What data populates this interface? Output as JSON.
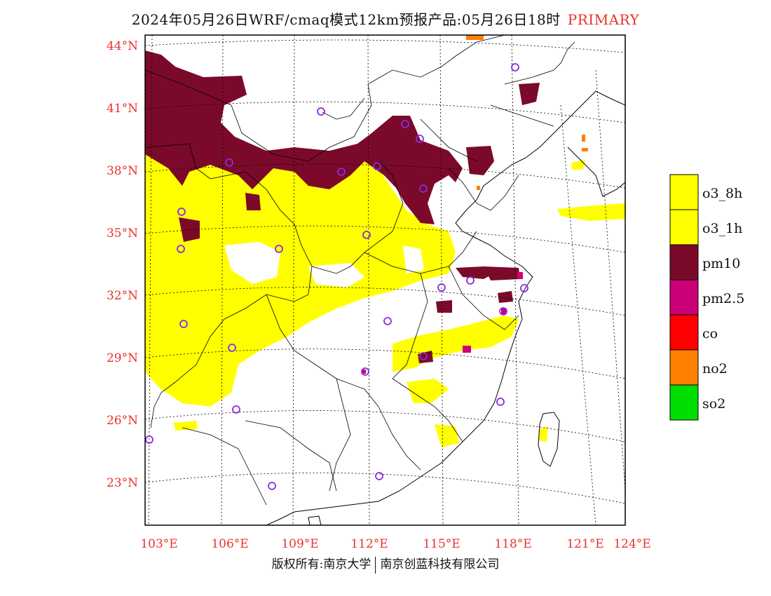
{
  "header": {
    "title": "2024年05月26日WRF/cmaq模式12km预报产品:05月26日18时",
    "title_accent": "PRIMARY"
  },
  "footer": {
    "copyright_left": "版权所有:南京大学",
    "copyright_right": "南京创蓝科技有限公司"
  },
  "map": {
    "lat_labels": [
      "44°N",
      "41°N",
      "38°N",
      "35°N",
      "32°N",
      "29°N",
      "26°N",
      "23°N"
    ],
    "lon_labels": [
      "103°E",
      "106°E",
      "109°E",
      "112°E",
      "115°E",
      "118°E",
      "121°E",
      "124°E"
    ]
  },
  "legend": {
    "items": [
      {
        "label": "o3_8h",
        "color": "#ffff00"
      },
      {
        "label": "o3_1h",
        "color": "#ffff00"
      },
      {
        "label": "pm10",
        "color": "#7b0a2a"
      },
      {
        "label": "pm2.5",
        "color": "#cc0077"
      },
      {
        "label": "co",
        "color": "#ff0000"
      },
      {
        "label": "no2",
        "color": "#ff7f00"
      },
      {
        "label": "so2",
        "color": "#00dd00"
      }
    ]
  },
  "colors": {
    "accent": "#e8322b",
    "o3": "#ffff00",
    "pm10": "#7b0a2a",
    "pm25": "#cc0077",
    "no2": "#ff7f00",
    "station_marker": "#8a2be2"
  }
}
